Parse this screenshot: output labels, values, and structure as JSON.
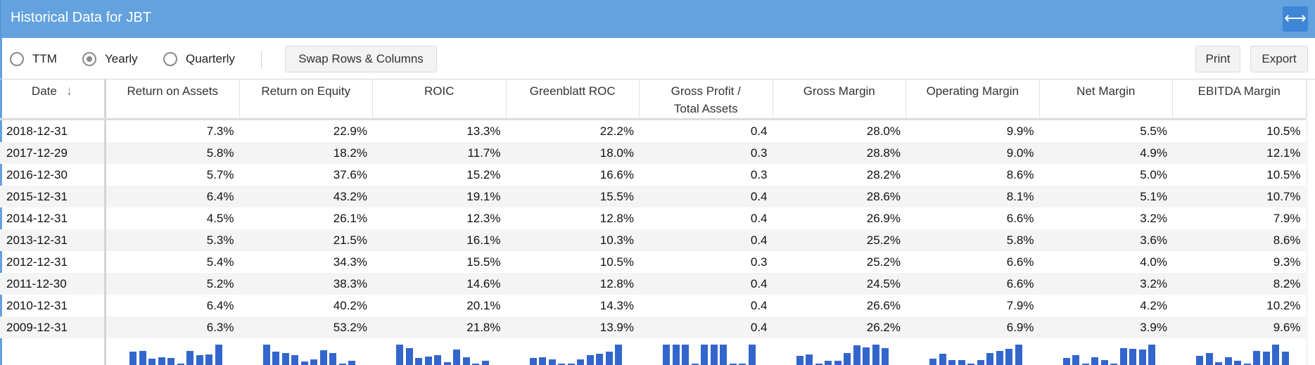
{
  "window": {
    "title": "Historical Data for JBT"
  },
  "toolbar": {
    "radios": [
      {
        "label": "TTM",
        "checked": false
      },
      {
        "label": "Yearly",
        "checked": true
      },
      {
        "label": "Quarterly",
        "checked": false
      }
    ],
    "swap_label": "Swap Rows & Columns",
    "print_label": "Print",
    "export_label": "Export"
  },
  "table": {
    "date_header": "Date",
    "sort_icon": "arrow-down-icon",
    "columns": [
      {
        "label": "Return on Assets"
      },
      {
        "label": "Return on Equity"
      },
      {
        "label": "ROIC"
      },
      {
        "label": "Greenblatt ROC"
      },
      {
        "label": "Gross Profit / Total Assets"
      },
      {
        "label": "Gross Margin"
      },
      {
        "label": "Operating Margin"
      },
      {
        "label": "Net Margin"
      },
      {
        "label": "EBITDA Margin"
      }
    ],
    "rows": [
      {
        "date": "2018-12-31",
        "values": [
          "7.3%",
          "22.9%",
          "13.3%",
          "22.2%",
          "0.4",
          "28.0%",
          "9.9%",
          "5.5%",
          "10.5%"
        ]
      },
      {
        "date": "2017-12-29",
        "values": [
          "5.8%",
          "18.2%",
          "11.7%",
          "18.0%",
          "0.3",
          "28.8%",
          "9.0%",
          "4.9%",
          "12.1%"
        ]
      },
      {
        "date": "2016-12-30",
        "values": [
          "5.7%",
          "37.6%",
          "15.2%",
          "16.6%",
          "0.3",
          "28.2%",
          "8.6%",
          "5.0%",
          "10.5%"
        ]
      },
      {
        "date": "2015-12-31",
        "values": [
          "6.4%",
          "43.2%",
          "19.1%",
          "15.5%",
          "0.4",
          "28.6%",
          "8.1%",
          "5.1%",
          "10.7%"
        ]
      },
      {
        "date": "2014-12-31",
        "values": [
          "4.5%",
          "26.1%",
          "12.3%",
          "12.8%",
          "0.4",
          "26.9%",
          "6.6%",
          "3.2%",
          "7.9%"
        ]
      },
      {
        "date": "2013-12-31",
        "values": [
          "5.3%",
          "21.5%",
          "16.1%",
          "10.3%",
          "0.4",
          "25.2%",
          "5.8%",
          "3.6%",
          "8.6%"
        ]
      },
      {
        "date": "2012-12-31",
        "values": [
          "5.4%",
          "34.3%",
          "15.5%",
          "10.5%",
          "0.3",
          "25.2%",
          "6.6%",
          "4.0%",
          "9.3%"
        ]
      },
      {
        "date": "2011-12-30",
        "values": [
          "5.2%",
          "38.3%",
          "14.6%",
          "12.8%",
          "0.4",
          "24.5%",
          "6.6%",
          "3.2%",
          "8.2%"
        ]
      },
      {
        "date": "2010-12-31",
        "values": [
          "6.4%",
          "40.2%",
          "20.1%",
          "14.3%",
          "0.4",
          "26.6%",
          "7.9%",
          "4.2%",
          "10.2%"
        ]
      },
      {
        "date": "2009-12-31",
        "values": [
          "6.3%",
          "53.2%",
          "21.8%",
          "13.9%",
          "0.4",
          "26.2%",
          "6.9%",
          "3.9%",
          "9.6%"
        ]
      }
    ]
  },
  "colors": {
    "title_bar": "#63a2df",
    "accent": "#3366cc"
  }
}
